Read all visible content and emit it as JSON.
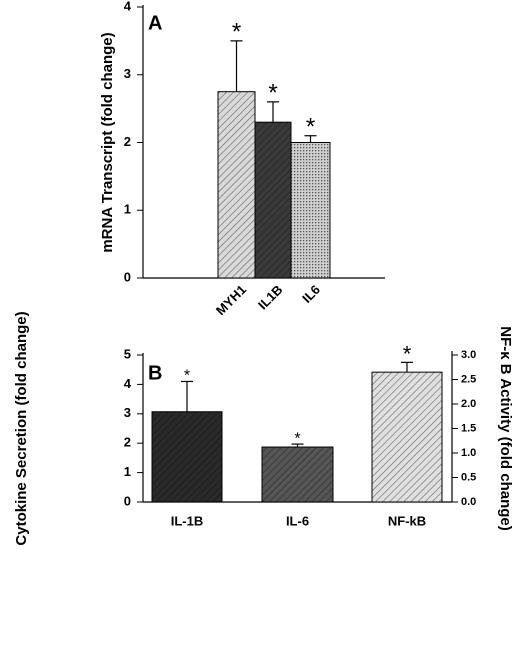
{
  "chart_data": [
    {
      "type": "bar",
      "panel": "A",
      "ylabel": "mRNA Transcript (fold change)",
      "categories": [
        "MYH1",
        "IL1B",
        "IL6"
      ],
      "series": [
        {
          "values": [
            2.75,
            2.3,
            2.0
          ],
          "errors": [
            0.75,
            0.3,
            0.1
          ],
          "colors": [
            "#d9d9d9",
            "#3a3a3a",
            "#cfcfcf"
          ]
        }
      ],
      "annotations": [
        "*",
        "*",
        "*"
      ],
      "ylim": [
        0,
        4
      ],
      "yticks": [
        0,
        1,
        2,
        3,
        4
      ]
    },
    {
      "type": "bar",
      "panel": "B",
      "ylabel": "Cytokine Secretion (fold change)",
      "y2label": "NF-κ B Activity (fold change)",
      "categories": [
        "IL-1B",
        "IL-6",
        "NF-kB"
      ],
      "series": [
        {
          "values": [
            3.07,
            1.87,
            null
          ],
          "errors": [
            1.03,
            0.1,
            null
          ],
          "colors": [
            "#2a2a2a",
            "#555555",
            null
          ]
        },
        {
          "axis": "y2",
          "values": [
            null,
            null,
            2.65
          ],
          "errors": [
            null,
            null,
            0.2
          ],
          "colors": [
            null,
            null,
            "#e0e0e0"
          ]
        }
      ],
      "annotations": [
        "*",
        "*",
        "*"
      ],
      "ylim": [
        0,
        5
      ],
      "yticks": [
        0,
        1,
        2,
        3,
        4,
        5
      ],
      "y2lim": [
        0,
        3
      ],
      "y2ticks": [
        {
          "value": 0,
          "label": "0.0"
        },
        0.5,
        {
          "value": 1,
          "label": "1.0"
        },
        1.5,
        {
          "value": 2,
          "label": "2.0"
        },
        2.5,
        {
          "value": 3,
          "label": "3.0"
        }
      ]
    }
  ]
}
